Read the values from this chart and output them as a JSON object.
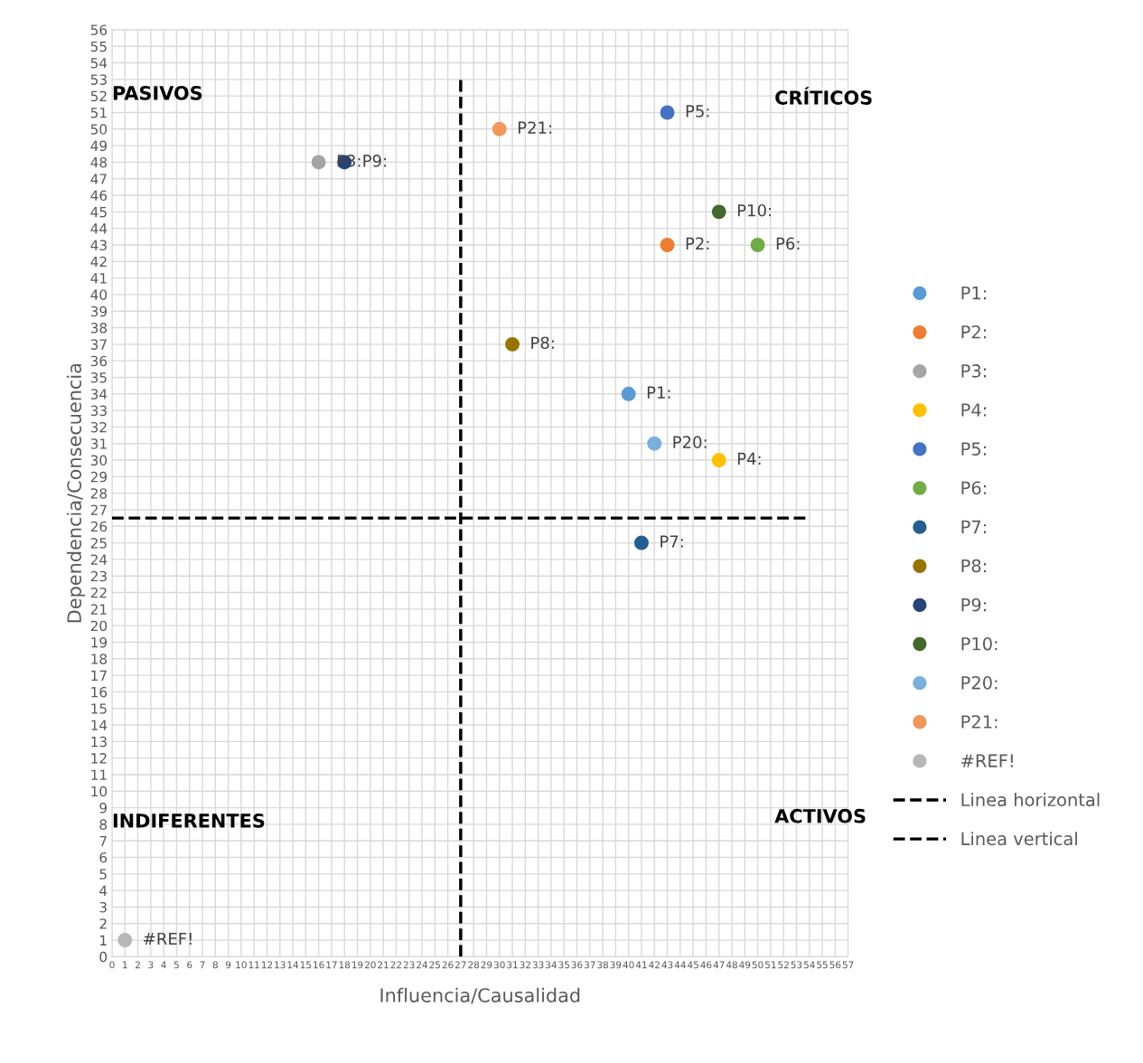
{
  "chart_data": {
    "type": "scatter",
    "xlabel": "Influencia/Causalidad",
    "ylabel": "Dependencia/Consecuencia",
    "xlim": [
      0,
      57
    ],
    "xticks": [
      0,
      1,
      2,
      3,
      4,
      5,
      6,
      7,
      8,
      9,
      10,
      11,
      12,
      13,
      14,
      15,
      16,
      17,
      18,
      19,
      20,
      21,
      22,
      23,
      24,
      25,
      26,
      27,
      28,
      29,
      30,
      31,
      32,
      33,
      34,
      35,
      36,
      37,
      38,
      39,
      40,
      41,
      42,
      43,
      44,
      45,
      46,
      47,
      48,
      49,
      50,
      51,
      52,
      53,
      54,
      55,
      56,
      57
    ],
    "ylim": [
      0,
      56
    ],
    "yticks": [
      0,
      1,
      2,
      3,
      4,
      5,
      6,
      7,
      8,
      9,
      10,
      11,
      12,
      13,
      14,
      15,
      16,
      17,
      18,
      19,
      20,
      21,
      22,
      23,
      24,
      25,
      26,
      27,
      28,
      29,
      30,
      31,
      32,
      33,
      34,
      35,
      36,
      37,
      38,
      39,
      40,
      41,
      42,
      43,
      44,
      45,
      46,
      47,
      48,
      49,
      50,
      51,
      52,
      53,
      54,
      55,
      56
    ],
    "grid": true,
    "legend": "right",
    "marker": "circle",
    "series": [
      {
        "name": "P1:",
        "color": "#5b9bd5",
        "x": [
          40
        ],
        "values": [
          34
        ],
        "value_labels": [
          "P1:"
        ]
      },
      {
        "name": "P2:",
        "color": "#ed7d31",
        "x": [
          43
        ],
        "values": [
          43
        ],
        "value_labels": [
          "P2:"
        ]
      },
      {
        "name": "P3:",
        "color": "#a5a5a5",
        "x": [
          16
        ],
        "values": [
          48
        ],
        "value_labels": [
          "P3:"
        ]
      },
      {
        "name": "P4:",
        "color": "#ffc000",
        "x": [
          47
        ],
        "values": [
          30
        ],
        "value_labels": [
          "P4:"
        ]
      },
      {
        "name": "P5:",
        "color": "#4472c4",
        "x": [
          43
        ],
        "values": [
          51
        ],
        "value_labels": [
          "P5:"
        ]
      },
      {
        "name": "P6:",
        "color": "#70ad47",
        "x": [
          50
        ],
        "values": [
          43
        ],
        "value_labels": [
          "P6:"
        ]
      },
      {
        "name": "P7:",
        "color": "#255e91",
        "x": [
          41
        ],
        "values": [
          25
        ],
        "value_labels": [
          "P7:"
        ]
      },
      {
        "name": "P8:",
        "color": "#997300",
        "x": [
          31
        ],
        "values": [
          37
        ],
        "value_labels": [
          "P8:"
        ]
      },
      {
        "name": "P9:",
        "color": "#264478",
        "x": [
          18
        ],
        "values": [
          48
        ],
        "value_labels": [
          "P9:"
        ]
      },
      {
        "name": "P10:",
        "color": "#43682b",
        "x": [
          47
        ],
        "values": [
          45
        ],
        "value_labels": [
          "P10:"
        ]
      },
      {
        "name": "P20:",
        "color": "#7cafdd",
        "x": [
          42
        ],
        "values": [
          31
        ],
        "value_labels": [
          "P20:"
        ]
      },
      {
        "name": "P21:",
        "color": "#f1975a",
        "x": [
          30
        ],
        "values": [
          50
        ],
        "value_labels": [
          "P21:"
        ]
      },
      {
        "name": "#REF!",
        "color": "#b7b7b7",
        "x": [
          1
        ],
        "values": [
          1
        ],
        "value_labels": [
          "#REF!"
        ]
      },
      {
        "name": "Linea horizontal",
        "type": "line",
        "color": "#000000",
        "line_style": "dashed",
        "marker": "none",
        "x": [
          0,
          54
        ],
        "values": [
          26.5,
          26.5
        ]
      },
      {
        "name": "Linea vertical",
        "type": "line",
        "color": "#000000",
        "line_style": "dashed",
        "marker": "none",
        "x": [
          27,
          27
        ],
        "values": [
          0,
          53
        ]
      }
    ],
    "annotations": [
      "PASIVOS",
      "CRÍTICOS",
      "INDIFERENTES",
      "ACTIVOS"
    ]
  }
}
